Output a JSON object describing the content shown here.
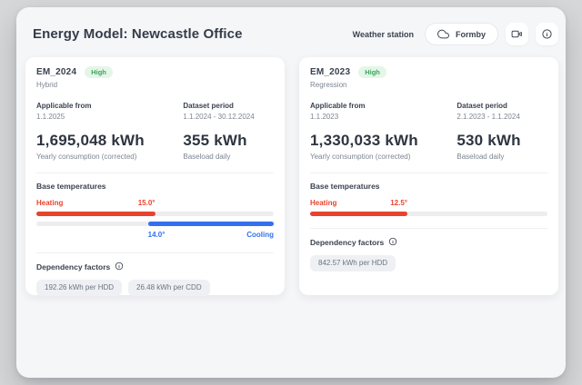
{
  "header": {
    "title": "Energy Model: Newcastle Office",
    "weather_station_label": "Weather station",
    "weather_station_value": "Formby"
  },
  "colors": {
    "heating": "#e8432e",
    "cooling": "#3370ee",
    "badge_bg": "#e4f6e8",
    "badge_text": "#3fa45b"
  },
  "cards": [
    {
      "name": "EM_2024",
      "badge": "High",
      "model_type": "Hybrid",
      "applicable_from_label": "Applicable from",
      "applicable_from": "1.1.2025",
      "dataset_period_label": "Dataset period",
      "dataset_period": "1.1.2024 - 30.12.2024",
      "yearly_consumption": "1,695,048 kWh",
      "yearly_consumption_label": "Yearly consumption (corrected)",
      "baseload": "355 kWh",
      "baseload_label": "Baseload daily",
      "base_temperatures_label": "Base temperatures",
      "heating_label": "Heating",
      "heating_value": "15.0°",
      "heating_fill_pct": 50,
      "cooling_label": "Cooling",
      "cooling_value": "14.0°",
      "cooling_start_pct": 47,
      "dependency_factors_label": "Dependency factors",
      "factors": [
        "192.26 kWh per HDD",
        "26.48 kWh per CDD"
      ]
    },
    {
      "name": "EM_2023",
      "badge": "High",
      "model_type": "Regression",
      "applicable_from_label": "Applicable from",
      "applicable_from": "1.1.2023",
      "dataset_period_label": "Dataset period",
      "dataset_period": "2.1.2023 - 1.1.2024",
      "yearly_consumption": "1,330,033 kWh",
      "yearly_consumption_label": "Yearly consumption (corrected)",
      "baseload": "530 kWh",
      "baseload_label": "Baseload daily",
      "base_temperatures_label": "Base temperatures",
      "heating_label": "Heating",
      "heating_value": "12.5°",
      "heating_fill_pct": 41,
      "dependency_factors_label": "Dependency factors",
      "factors": [
        "842.57 kWh per HDD"
      ]
    }
  ]
}
